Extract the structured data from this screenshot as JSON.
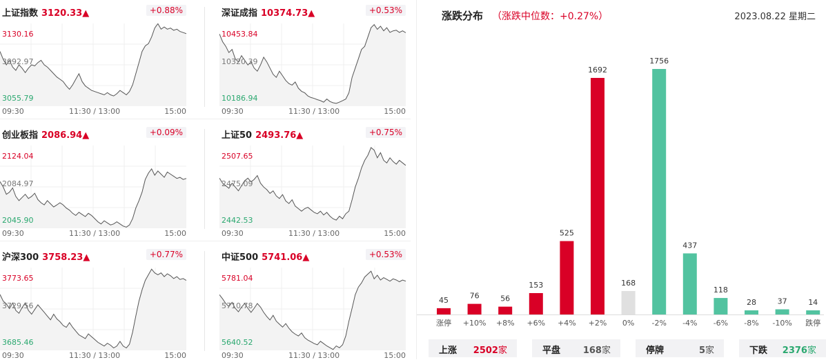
{
  "indices": [
    {
      "name": "上证指数",
      "price": "3120.33▲",
      "change": "+0.88%",
      "high": "3130.16",
      "mid": "3092.97",
      "low": "3055.79",
      "series": [
        3105,
        3098,
        3093,
        3097,
        3091,
        3088,
        3093,
        3090,
        3086,
        3090,
        3093,
        3092,
        3095,
        3097,
        3093,
        3091,
        3088,
        3085,
        3082,
        3080,
        3078,
        3074,
        3071,
        3075,
        3080,
        3085,
        3078,
        3074,
        3072,
        3070,
        3069,
        3068,
        3067,
        3066,
        3068,
        3066,
        3065,
        3067,
        3070,
        3068,
        3066,
        3069,
        3075,
        3085,
        3095,
        3105,
        3110,
        3112,
        3118,
        3126,
        3130,
        3125,
        3127,
        3125,
        3126,
        3124,
        3125,
        3123,
        3122,
        3121
      ]
    },
    {
      "name": "深证成指",
      "price": "10374.73▲",
      "change": "+0.53%",
      "high": "10453.84",
      "mid": "10320.39",
      "low": "10186.94",
      "series": [
        10420,
        10395,
        10380,
        10360,
        10370,
        10340,
        10330,
        10350,
        10335,
        10320,
        10330,
        10310,
        10300,
        10320,
        10345,
        10330,
        10310,
        10290,
        10280,
        10300,
        10285,
        10270,
        10260,
        10255,
        10265,
        10245,
        10235,
        10230,
        10220,
        10215,
        10212,
        10208,
        10205,
        10200,
        10210,
        10202,
        10198,
        10196,
        10200,
        10205,
        10210,
        10230,
        10280,
        10310,
        10340,
        10370,
        10380,
        10410,
        10440,
        10450,
        10435,
        10445,
        10430,
        10440,
        10425,
        10430,
        10432,
        10425,
        10430,
        10424
      ]
    },
    {
      "name": "创业板指",
      "price": "2086.94▲",
      "change": "+0.09%",
      "high": "2124.04",
      "mid": "2084.97",
      "low": "2045.90",
      "series": [
        2090,
        2085,
        2078,
        2080,
        2084,
        2076,
        2072,
        2075,
        2078,
        2074,
        2076,
        2079,
        2073,
        2070,
        2068,
        2072,
        2069,
        2066,
        2068,
        2070,
        2068,
        2065,
        2063,
        2060,
        2058,
        2061,
        2059,
        2057,
        2060,
        2058,
        2055,
        2052,
        2050,
        2053,
        2051,
        2049,
        2050,
        2052,
        2050,
        2048,
        2047,
        2049,
        2055,
        2065,
        2072,
        2080,
        2092,
        2098,
        2102,
        2096,
        2100,
        2097,
        2094,
        2099,
        2097,
        2095,
        2093,
        2094,
        2092,
        2093
      ]
    },
    {
      "name": "上证50",
      "price": "2493.76▲",
      "change": "+0.75%",
      "high": "2507.65",
      "mid": "2475.09",
      "low": "2442.53",
      "series": [
        2482,
        2478,
        2476,
        2474,
        2478,
        2475,
        2472,
        2476,
        2480,
        2482,
        2479,
        2481,
        2484,
        2478,
        2475,
        2473,
        2470,
        2472,
        2468,
        2466,
        2469,
        2464,
        2462,
        2465,
        2460,
        2458,
        2456,
        2458,
        2459,
        2457,
        2455,
        2454,
        2456,
        2453,
        2455,
        2452,
        2450,
        2449,
        2452,
        2450,
        2454,
        2456,
        2465,
        2475,
        2482,
        2490,
        2496,
        2500,
        2506,
        2504,
        2498,
        2502,
        2496,
        2494,
        2498,
        2495,
        2493,
        2496,
        2494,
        2492
      ]
    },
    {
      "name": "沪深300",
      "price": "3758.23▲",
      "change": "+0.77%",
      "high": "3773.65",
      "mid": "3729.56",
      "low": "3685.46",
      "series": [
        3745,
        3738,
        3735,
        3730,
        3736,
        3728,
        3725,
        3731,
        3736,
        3728,
        3724,
        3729,
        3734,
        3730,
        3726,
        3722,
        3718,
        3724,
        3719,
        3716,
        3712,
        3710,
        3715,
        3710,
        3706,
        3702,
        3700,
        3698,
        3703,
        3700,
        3697,
        3694,
        3692,
        3690,
        3693,
        3691,
        3688,
        3690,
        3695,
        3690,
        3688,
        3692,
        3705,
        3722,
        3738,
        3750,
        3760,
        3766,
        3772,
        3768,
        3766,
        3768,
        3764,
        3767,
        3765,
        3762,
        3764,
        3761,
        3762,
        3760
      ]
    },
    {
      "name": "中证500",
      "price": "5741.06▲",
      "change": "+0.53%",
      "high": "5781.04",
      "mid": "5710.78",
      "low": "5640.52",
      "series": [
        5735,
        5728,
        5720,
        5715,
        5722,
        5712,
        5706,
        5714,
        5720,
        5712,
        5705,
        5712,
        5720,
        5714,
        5705,
        5698,
        5692,
        5700,
        5690,
        5685,
        5680,
        5686,
        5678,
        5672,
        5668,
        5665,
        5670,
        5662,
        5658,
        5655,
        5652,
        5650,
        5656,
        5652,
        5648,
        5645,
        5642,
        5648,
        5645,
        5650,
        5665,
        5690,
        5712,
        5735,
        5748,
        5755,
        5765,
        5770,
        5775,
        5762,
        5768,
        5760,
        5764,
        5761,
        5758,
        5762,
        5760,
        5757,
        5760,
        5758
      ]
    }
  ],
  "xaxis": {
    "start": "09:30",
    "mid": "11:30 / 13:00",
    "end": "15:00"
  },
  "distribution": {
    "title": "涨跌分布",
    "subtitle": "（涨跌中位数：+0.27%）",
    "date": "2023.08.22  星期二"
  },
  "chart_data": {
    "type": "bar",
    "categories": [
      "涨停",
      "+10%",
      "+8%",
      "+6%",
      "+4%",
      "+2%",
      "0%",
      "-2%",
      "-4%",
      "-6%",
      "-8%",
      "-10%",
      "跌停"
    ],
    "values": [
      45,
      76,
      56,
      153,
      525,
      1692,
      168,
      1756,
      437,
      118,
      28,
      37,
      14
    ],
    "colors": [
      "#d90026",
      "#d90026",
      "#d90026",
      "#d90026",
      "#d90026",
      "#d90026",
      "#e0e0e0",
      "#52c3a0",
      "#52c3a0",
      "#52c3a0",
      "#52c3a0",
      "#52c3a0",
      "#52c3a0"
    ],
    "title": "涨跌分布",
    "xlabel": "",
    "ylabel": ""
  },
  "summary": [
    {
      "label": "上涨",
      "value": "2502",
      "unit": "家",
      "color": "#d90026"
    },
    {
      "label": "平盘",
      "value": "168",
      "unit": "家",
      "color": "#555555"
    },
    {
      "label": "停牌",
      "value": "5",
      "unit": "家",
      "color": "#555555"
    },
    {
      "label": "下跌",
      "value": "2376",
      "unit": "家",
      "color": "#2aa86f"
    }
  ]
}
